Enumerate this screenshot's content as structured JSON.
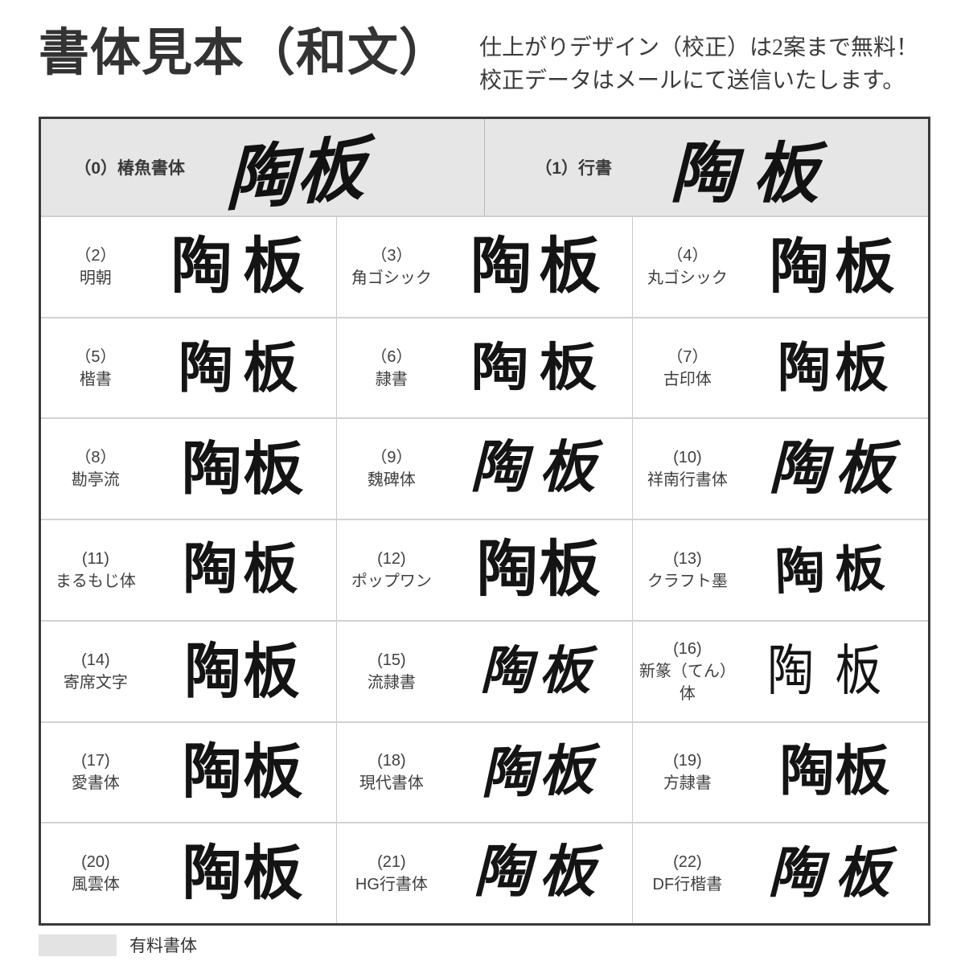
{
  "header": {
    "title": "書体見本（和文）",
    "subtitle_line1": "仕上がりデザイン（校正）は2案まで無料！",
    "subtitle_line2": "校正データはメールにて送信いたします。"
  },
  "sample_text": "陶板",
  "featured": [
    {
      "label": "（0）椿魚書体"
    },
    {
      "label": "（1）行書"
    }
  ],
  "fonts": [
    {
      "num": "（0）",
      "name": "椿魚書体"
    },
    {
      "num": "（1）",
      "name": "行書"
    },
    {
      "num": "（2）",
      "name": "明朝"
    },
    {
      "num": "（3）",
      "name": "角ゴシック"
    },
    {
      "num": "（4）",
      "name": "丸ゴシック"
    },
    {
      "num": "（5）",
      "name": "楷書"
    },
    {
      "num": "（6）",
      "name": "隷書"
    },
    {
      "num": "（7）",
      "name": "古印体"
    },
    {
      "num": "（8）",
      "name": "勘亭流"
    },
    {
      "num": "（9）",
      "name": "魏碑体"
    },
    {
      "num": "(10)",
      "name": "祥南行書体"
    },
    {
      "num": "(11)",
      "name": "まるもじ体"
    },
    {
      "num": "(12)",
      "name": "ポップワン"
    },
    {
      "num": "(13)",
      "name": "クラフト墨"
    },
    {
      "num": "(14)",
      "name": "寄席文字"
    },
    {
      "num": "(15)",
      "name": "流隷書"
    },
    {
      "num": "(16)",
      "name": "新篆（てん）体"
    },
    {
      "num": "(17)",
      "name": "愛書体"
    },
    {
      "num": "(18)",
      "name": "現代書体"
    },
    {
      "num": "(19)",
      "name": "方隷書"
    },
    {
      "num": "(20)",
      "name": "風雲体"
    },
    {
      "num": "(21)",
      "name": "HG行書体"
    },
    {
      "num": "(22)",
      "name": "DF行楷書"
    }
  ],
  "legend": {
    "paid_fonts_label": "有料書体"
  },
  "colors": {
    "featured_row_bg": "#e6e6e6",
    "legend_swatch": "#e3e3e3",
    "table_border": "#3a3a3a",
    "grid_line": "#c9c9c9",
    "ink": "#141414"
  }
}
